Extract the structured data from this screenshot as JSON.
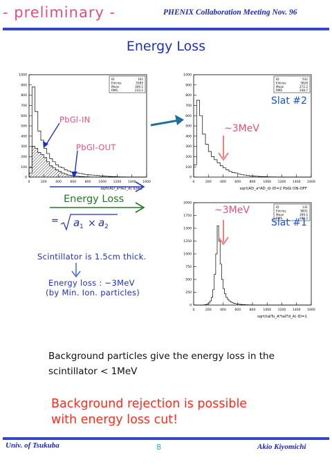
{
  "header": {
    "left_label": "- preliminary -",
    "right_label": "PHENIX Collaboration Meeting  Nov. 96"
  },
  "title": "Energy Loss",
  "labels": {
    "pbgl_in": "PbGl-IN",
    "pbgl_out": "PbGl-OUT",
    "energy_loss": "Energy Loss",
    "formula_prefix": "=",
    "peak_top": "~3MeV",
    "peak_bottom": "~3MeV",
    "slat2": "Slat #2",
    "slat1": "Slat #1",
    "scint_thickness": "Scintillator is 1.5cm thick.",
    "energy_loss_value": "Energy loss : ~3MeV",
    "min_ion": "(by Min. Ion. particles)"
  },
  "body_text": {
    "background_note": "Background particles give the energy loss in the scintillator < 1MeV",
    "conclusion_line1": "Background rejection is possible",
    "conclusion_line2": "with energy loss cut!"
  },
  "footer": {
    "left": "Univ. of Tsukuba",
    "page_number": "8",
    "right": "Akio Kiyomichi"
  },
  "colors": {
    "blue": "#1d2fc0",
    "pink": "#e0507a",
    "red": "#ff2a1a",
    "teal_arrow": "#1f6f9e",
    "green": "#1c7a24",
    "arrow_salmon": "#f08080"
  },
  "chart_data": [
    {
      "type": "histogram",
      "name": "pbgl-in-out",
      "xlabel": "sqrt(AD_a*AD_d) ID=2",
      "xlim": [
        0,
        1600
      ],
      "ylim": [
        0,
        1000
      ],
      "x_ticks": [
        "0",
        "200",
        "400",
        "600",
        "800",
        "1000",
        "1200",
        "1400",
        "1600"
      ],
      "y_ticks": [
        "0",
        "100",
        "200",
        "300",
        "400",
        "500",
        "600",
        "700",
        "800",
        "900",
        "1000"
      ],
      "stats": {
        "ID": "102",
        "Entries": "5585",
        "Mean": "309.2",
        "RMS": "233.2"
      },
      "bin_width": 40,
      "series": [
        {
          "name": "PbGl-IN",
          "values": [
            90,
            880,
            640,
            450,
            360,
            280,
            230,
            180,
            150,
            120,
            100,
            90,
            70,
            60,
            50,
            45,
            40,
            35,
            30,
            25,
            22,
            20,
            18,
            15,
            12,
            10,
            8,
            6,
            5,
            4,
            3,
            2,
            2,
            1,
            1,
            1,
            0,
            0,
            0,
            0
          ]
        },
        {
          "name": "PbGl-OUT",
          "values": [
            40,
            300,
            280,
            240,
            220,
            190,
            150,
            110,
            90,
            70,
            55,
            40,
            30,
            20,
            15,
            10,
            8,
            6,
            4,
            3,
            2,
            1,
            1,
            0,
            0,
            0,
            0,
            0,
            0,
            0,
            0,
            0,
            0,
            0,
            0,
            0,
            0,
            0,
            0,
            0
          ]
        }
      ]
    },
    {
      "type": "histogram",
      "name": "slat-2",
      "xlabel": "sqrt(AD_a*AD_d) ID=2 PbGl ON-OFF",
      "xlim": [
        0,
        1600
      ],
      "ylim": [
        0,
        1000
      ],
      "x_ticks": [
        "0",
        "200",
        "400",
        "600",
        "800",
        "1000",
        "1200",
        "1400",
        "1600"
      ],
      "y_ticks": [
        "0",
        "100",
        "200",
        "300",
        "400",
        "500",
        "600",
        "700",
        "800",
        "900",
        "1000"
      ],
      "stats": {
        "ID": "532",
        "Entries": "3828",
        "Mean": "272.2",
        "RMS": "248.7"
      },
      "bin_width": 40,
      "values": [
        120,
        750,
        600,
        420,
        320,
        250,
        200,
        170,
        140,
        110,
        90,
        70,
        55,
        45,
        40,
        30,
        25,
        20,
        15,
        12,
        10,
        8,
        6,
        5,
        4,
        3,
        2,
        2,
        1,
        1,
        0,
        0,
        0,
        0,
        0,
        0,
        0,
        0,
        0,
        0
      ]
    },
    {
      "type": "histogram",
      "name": "slat-1",
      "xlabel": "sqrt(talTu_A*talTd_A) ID=1",
      "xlim": [
        0,
        1600
      ],
      "ylim": [
        0,
        2000
      ],
      "x_ticks": [
        "0",
        "200",
        "400",
        "600",
        "800",
        "1000",
        "1200",
        "1400",
        "1600"
      ],
      "y_ticks": [
        "0",
        "250",
        "500",
        "750",
        "1000",
        "1250",
        "1500",
        "1750",
        "2000"
      ],
      "stats": {
        "ID": "131",
        "Entries": "9831",
        "Mean": "399.5",
        "RMS": "209.2"
      },
      "bin_width": 20,
      "values": [
        0,
        0,
        0,
        0,
        0,
        0,
        0,
        5,
        10,
        20,
        40,
        80,
        150,
        300,
        600,
        1000,
        1550,
        1250,
        800,
        500,
        320,
        220,
        150,
        110,
        80,
        60,
        45,
        35,
        28,
        22,
        18,
        15,
        12,
        10,
        8,
        6,
        5,
        4,
        3,
        2,
        2,
        1,
        1,
        1,
        0,
        0,
        0,
        0,
        0,
        0,
        0,
        0,
        0,
        0,
        0,
        0,
        0,
        0,
        0,
        0,
        0,
        0,
        0,
        0,
        0,
        0,
        0,
        0,
        0,
        0,
        0,
        0,
        0,
        0,
        0,
        0,
        0,
        0,
        0,
        0
      ]
    }
  ]
}
